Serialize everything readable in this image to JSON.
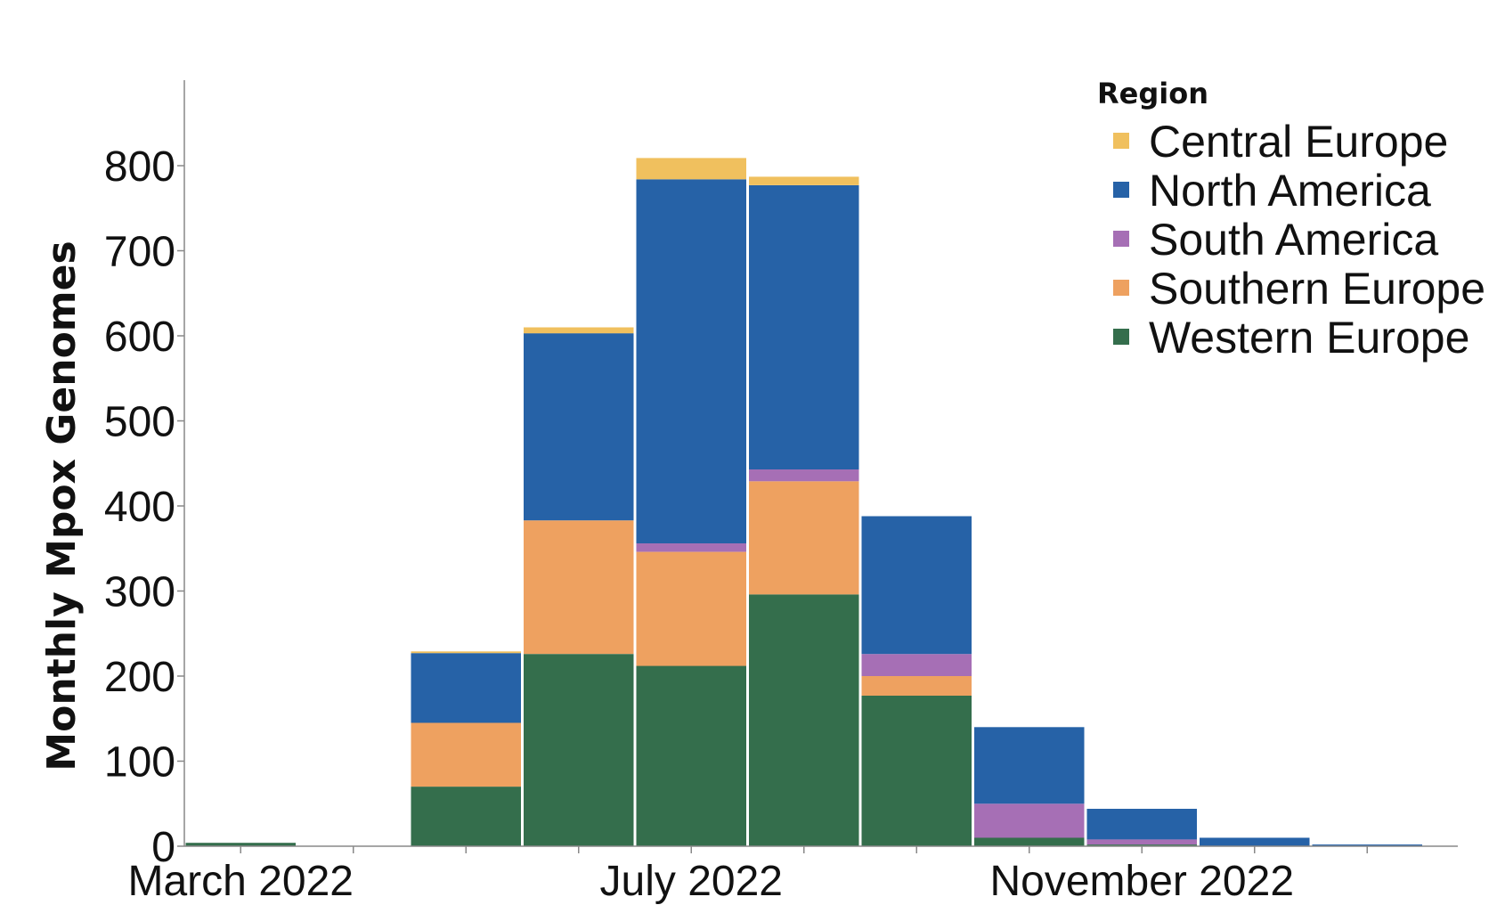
{
  "chart_data": {
    "type": "bar",
    "stacked": true,
    "ylabel": "Monthly Mpox Genomes",
    "xlabel": "",
    "ylim": [
      0,
      900
    ],
    "yticks": [
      0,
      100,
      200,
      300,
      400,
      500,
      600,
      700,
      800
    ],
    "grid": false,
    "legend_position": "top-right",
    "legend_title": "Region",
    "categories": [
      "2022-03",
      "2022-04",
      "2022-05",
      "2022-06",
      "2022-07",
      "2022-08",
      "2022-09",
      "2022-10",
      "2022-11",
      "2022-12",
      "2023-01"
    ],
    "x_tick_labels": [
      "March 2022",
      "July 2022",
      "November 2022"
    ],
    "x_tick_label_categories": [
      "2022-03",
      "2022-07",
      "2022-11"
    ],
    "series": [
      {
        "name": "Western Europe",
        "color": "#346e4c",
        "values": [
          4,
          0,
          70,
          226,
          212,
          296,
          177,
          10,
          2,
          0,
          0
        ]
      },
      {
        "name": "Southern Europe",
        "color": "#eea160",
        "values": [
          0,
          0,
          75,
          157,
          134,
          133,
          23,
          0,
          0,
          0,
          0
        ]
      },
      {
        "name": "South America",
        "color": "#a66fb5",
        "values": [
          0,
          0,
          0,
          0,
          10,
          14,
          26,
          40,
          6,
          0,
          0
        ]
      },
      {
        "name": "North America",
        "color": "#2662a7",
        "values": [
          0,
          0,
          82,
          220,
          428,
          334,
          162,
          90,
          36,
          10,
          2
        ]
      },
      {
        "name": "Central Europe",
        "color": "#f0c05e",
        "values": [
          0,
          0,
          2,
          7,
          25,
          10,
          0,
          0,
          0,
          0,
          0
        ]
      }
    ],
    "legend_order": [
      "Central Europe",
      "North America",
      "South America",
      "Southern Europe",
      "Western Europe"
    ]
  }
}
